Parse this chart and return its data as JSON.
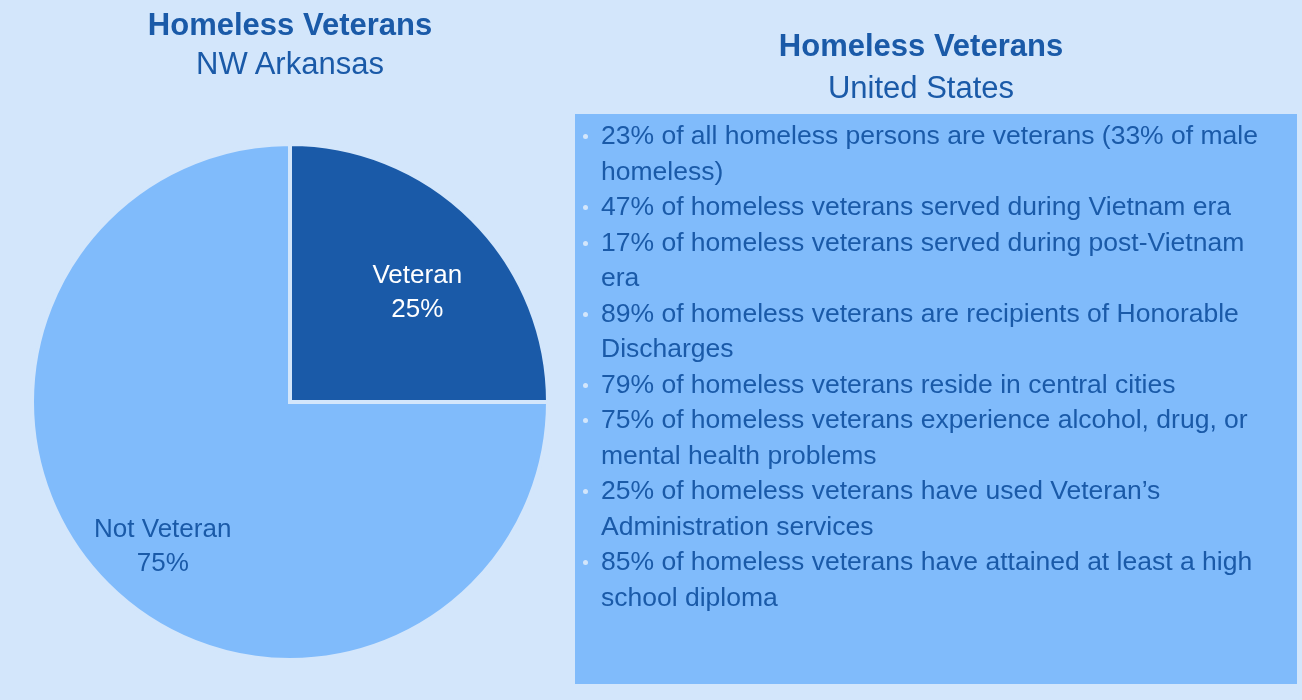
{
  "chart_data": [
    {
      "type": "pie",
      "title": "Homeless Veterans",
      "subtitle": "NW Arkansas",
      "categories": [
        "Veteran",
        "Not Veteran"
      ],
      "values": [
        25,
        75
      ],
      "value_labels": [
        "25%",
        "75%"
      ],
      "colors": [
        "#1a5aa8",
        "#80bbfb"
      ]
    },
    {
      "type": "other",
      "title": "Homeless Veterans",
      "subtitle": "United States",
      "annotations": [
        "23% of all homeless persons are veterans (33% of male homeless)",
        "47% of homeless veterans served during Vietnam era",
        "17% of homeless veterans served during post-Vietnam era",
        "89% of homeless veterans are recipients of Honorable Discharges",
        "79% of homeless veterans reside in central cities",
        "75% of homeless veterans experience alcohol, drug, or mental health problems",
        "25% of homeless veterans have used Veteran’s Administration services",
        "85% of homeless veterans have attained at least a high school diploma"
      ]
    }
  ]
}
